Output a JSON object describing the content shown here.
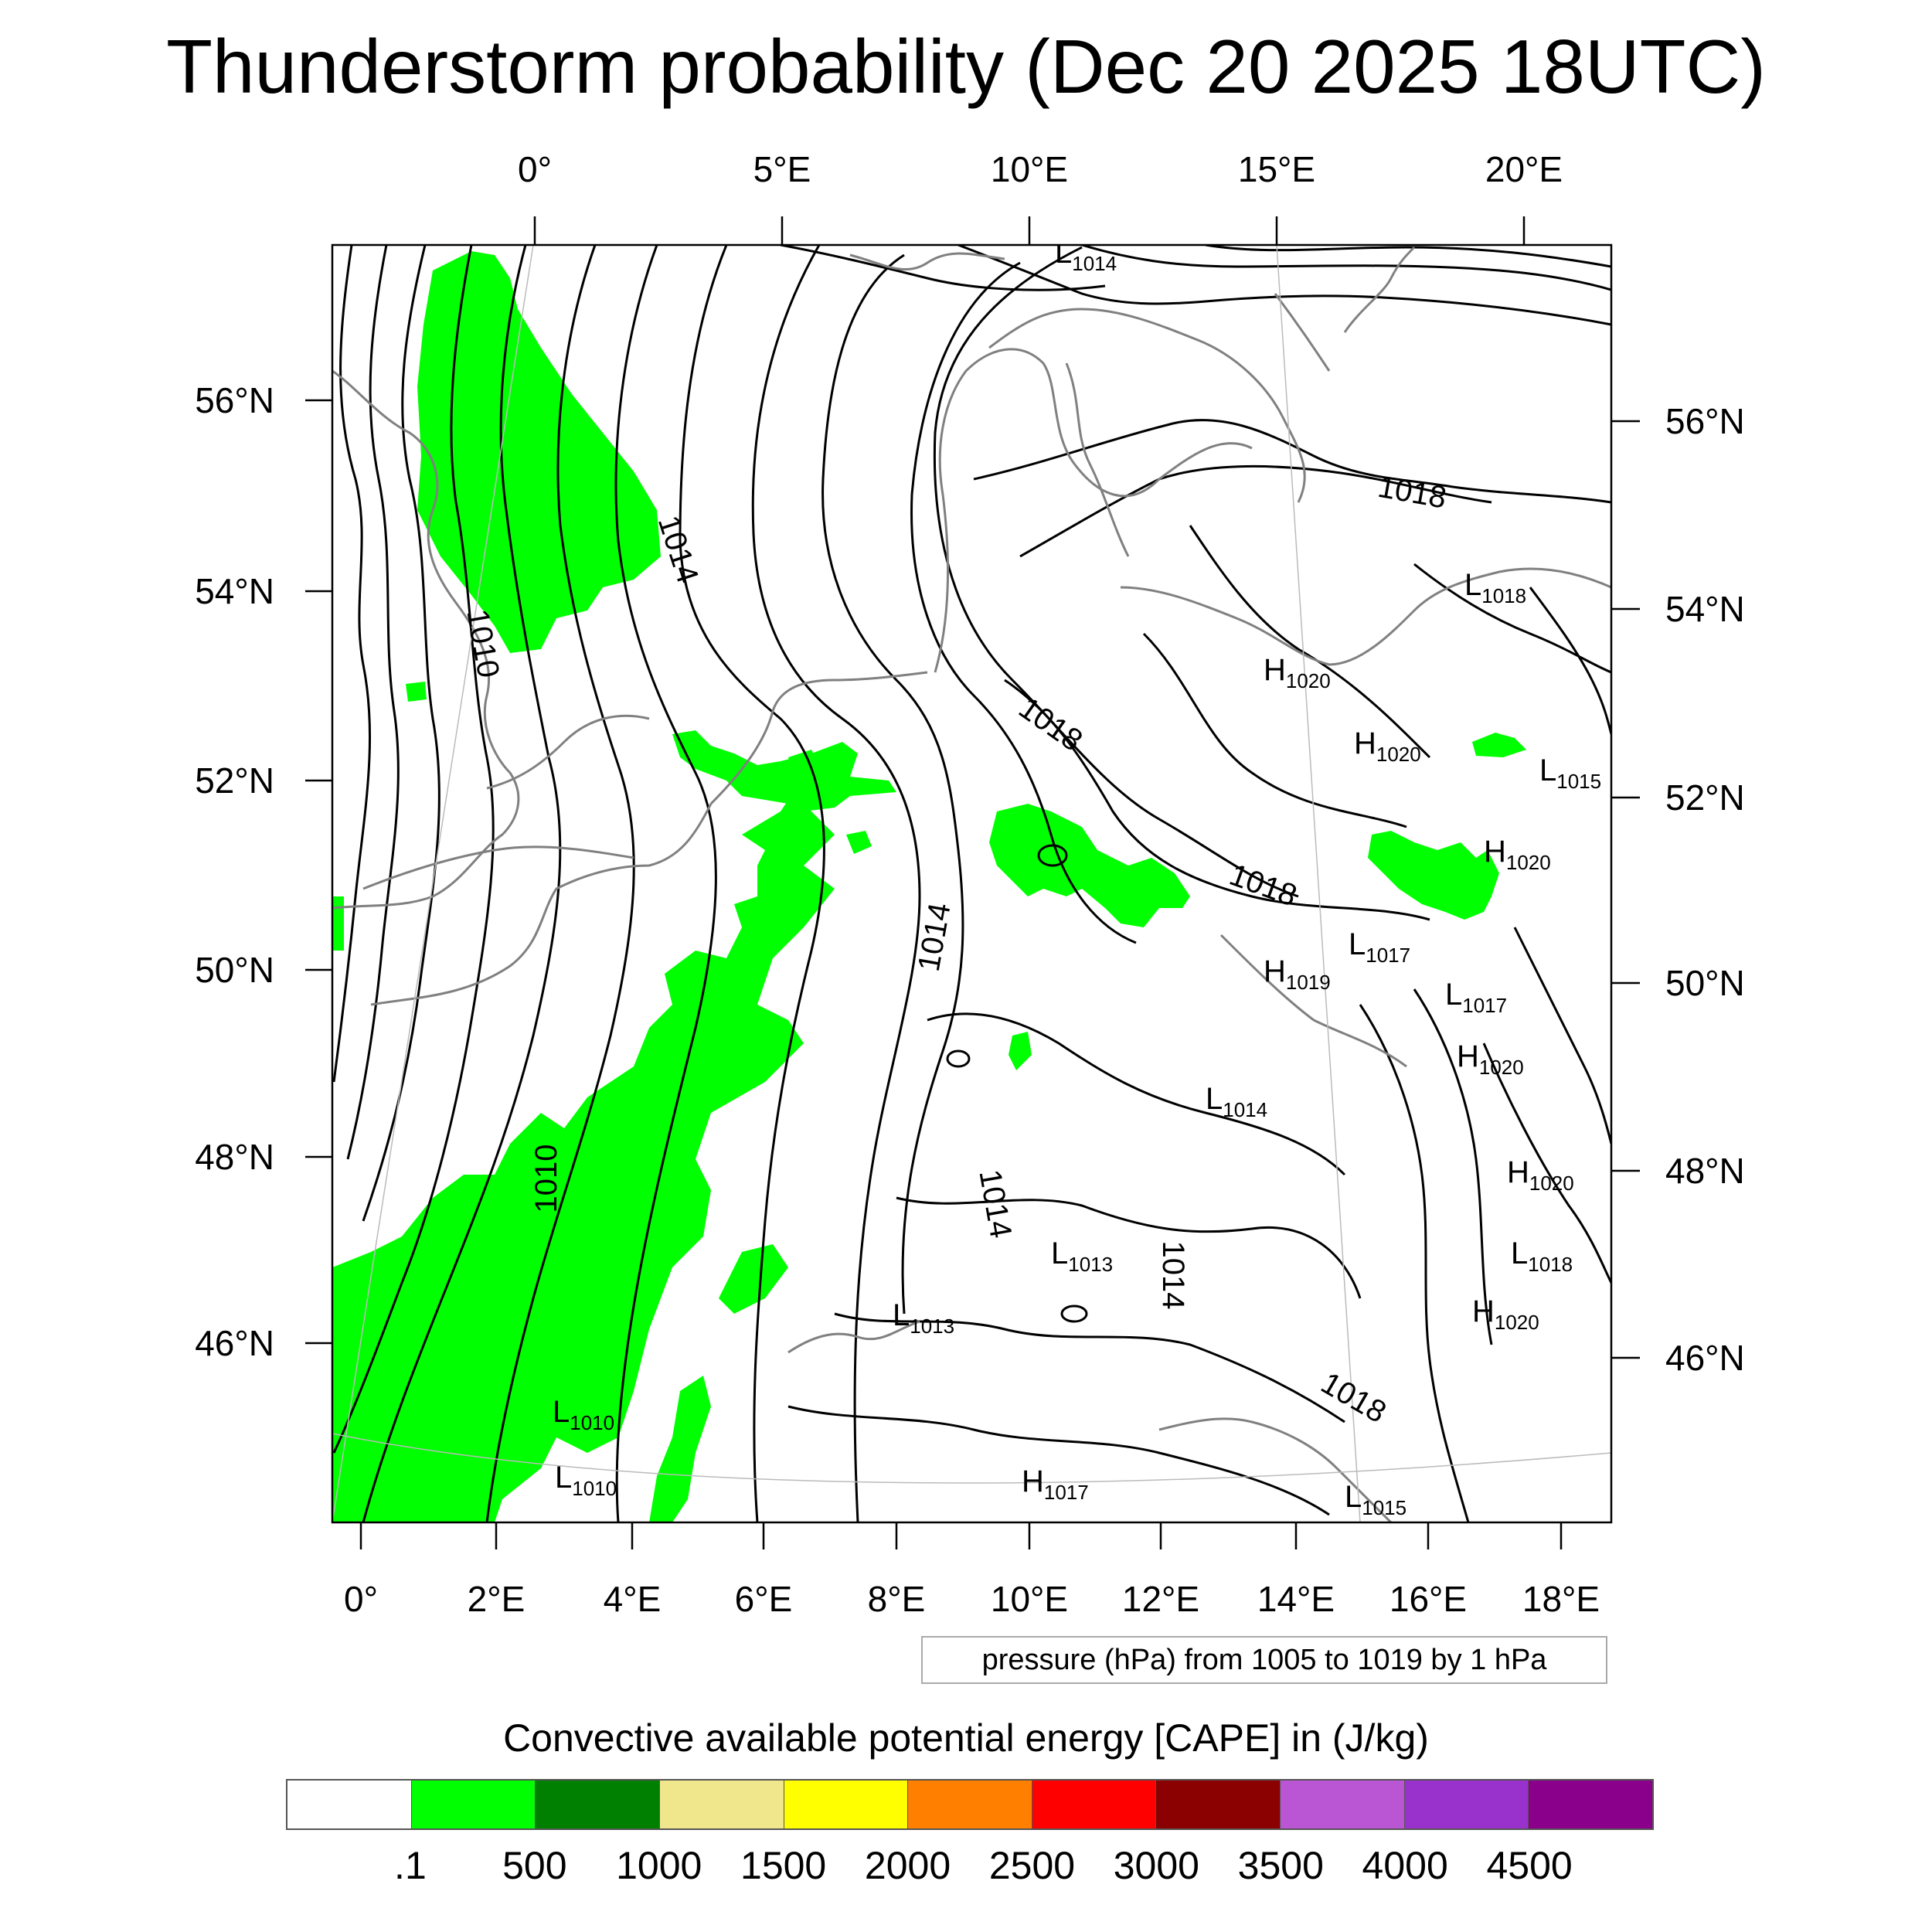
{
  "title": "Thunderstorm probability (Dec 20 2025 18UTC)",
  "map": {
    "top_lon_labels": [
      "0°",
      "5°E",
      "10°E",
      "15°E",
      "20°E"
    ],
    "left_lat_labels": [
      "56°N",
      "54°N",
      "52°N",
      "50°N",
      "48°N",
      "46°N"
    ],
    "right_lat_labels": [
      "56°N",
      "54°N",
      "52°N",
      "50°N",
      "48°N",
      "46°N"
    ],
    "bottom_lon_labels": [
      "0°",
      "2°E",
      "4°E",
      "6°E",
      "8°E",
      "10°E",
      "12°E",
      "14°E",
      "16°E",
      "18°E"
    ],
    "isobar_labels": [
      "1010",
      "1014",
      "1018",
      "1018",
      "1018",
      "1014",
      "1010",
      "1014",
      "1014",
      "1018"
    ],
    "pressure_centers": [
      {
        "type": "L",
        "value": "1014"
      },
      {
        "type": "L",
        "value": "1018"
      },
      {
        "type": "H",
        "value": "1020"
      },
      {
        "type": "H",
        "value": "1020"
      },
      {
        "type": "L",
        "value": "1015"
      },
      {
        "type": "H",
        "value": "1020"
      },
      {
        "type": "L",
        "value": "1017"
      },
      {
        "type": "H",
        "value": "1019"
      },
      {
        "type": "L",
        "value": "1017"
      },
      {
        "type": "H",
        "value": "1020"
      },
      {
        "type": "L",
        "value": "1014"
      },
      {
        "type": "H",
        "value": "1020"
      },
      {
        "type": "L",
        "value": "1013"
      },
      {
        "type": "L",
        "value": "1018"
      },
      {
        "type": "L",
        "value": "1013"
      },
      {
        "type": "H",
        "value": "1020"
      },
      {
        "type": "L",
        "value": "1010"
      },
      {
        "type": "L",
        "value": "1010"
      },
      {
        "type": "H",
        "value": "1017"
      },
      {
        "type": "L",
        "value": "1015"
      }
    ],
    "colors": {
      "cape_low": "#00ff00",
      "isobar": "#000000",
      "coastline": "#808080"
    }
  },
  "contour_note": "pressure (hPa) from 1005 to 1019 by 1 hPa",
  "colorbar": {
    "title": "Convective available potential energy [CAPE] in (J/kg)",
    "colors": [
      "#ffffff",
      "#00ff00",
      "#008000",
      "#f0e68c",
      "#ffff00",
      "#ff8000",
      "#ff0000",
      "#8b0000",
      "#ba55d3",
      "#9932cc",
      "#8b008b"
    ],
    "labels": [
      ".1",
      "500",
      "1000",
      "1500",
      "2000",
      "2500",
      "3000",
      "3500",
      "4000",
      "4500"
    ]
  }
}
